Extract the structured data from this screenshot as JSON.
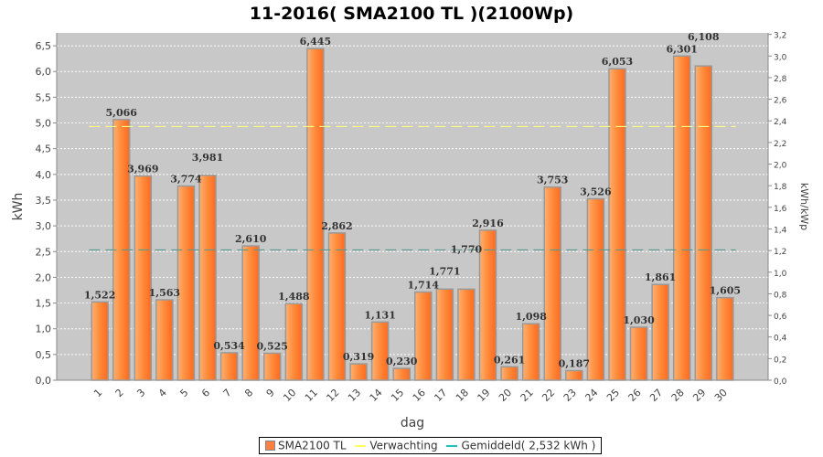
{
  "chart_data": {
    "type": "bar",
    "title": "11-2016( SMA2100 TL )(2100Wp)",
    "xlabel": "dag",
    "ylabel": "kWh",
    "y2label": "kWh/kWp",
    "ylim": [
      0,
      6.75
    ],
    "y2lim": [
      0,
      3.214
    ],
    "yticks": [
      "0,0",
      "0,5",
      "1,0",
      "1,5",
      "2,0",
      "2,5",
      "3,0",
      "3,5",
      "4,0",
      "4,5",
      "5,0",
      "5,5",
      "6,0",
      "6,5"
    ],
    "y2ticks": [
      "0,0",
      "0,2",
      "0,4",
      "0,6",
      "0,8",
      "1,0",
      "1,2",
      "1,4",
      "1,6",
      "1,8",
      "2,0",
      "2,2",
      "2,4",
      "2,6",
      "2,8",
      "3,0",
      "3,2"
    ],
    "categories": [
      "1",
      "2",
      "3",
      "4",
      "5",
      "6",
      "7",
      "8",
      "9",
      "10",
      "11",
      "12",
      "13",
      "14",
      "15",
      "16",
      "17",
      "18",
      "19",
      "20",
      "21",
      "22",
      "23",
      "24",
      "25",
      "26",
      "27",
      "28",
      "29",
      "30"
    ],
    "values": [
      1.522,
      5.066,
      3.969,
      1.563,
      3.774,
      3.981,
      0.534,
      2.61,
      0.525,
      1.488,
      6.445,
      2.862,
      0.319,
      1.131,
      0.23,
      1.714,
      1.771,
      1.77,
      2.916,
      0.261,
      1.098,
      3.753,
      0.187,
      3.526,
      6.053,
      1.03,
      1.861,
      6.301,
      6.108,
      1.605
    ],
    "labels": [
      "1,522",
      "5,066",
      "3,969",
      "1,563",
      "3,774",
      "3,981",
      "0,534",
      "2,610",
      "0,525",
      "1,488",
      "6,445",
      "2,862",
      "0,319",
      "1,131",
      "0,230",
      "1,714",
      "1,771",
      "1,770",
      "2,916",
      "0,261",
      "1,098",
      "3,753",
      "0,187",
      "3,526",
      "6,053",
      "1,030",
      "1,861",
      "6,301",
      "6,108",
      "1,605"
    ],
    "expected": 4.93,
    "average": 2.532,
    "legend": [
      "SMA2100 TL",
      "Verwachting",
      "Gemiddeld( 2,532 kWh )"
    ],
    "colors": {
      "bar": "#ff8c3a",
      "expected": "#ffff80",
      "average": "#20c0c0",
      "plot_bg": "#c8c8c8"
    }
  }
}
